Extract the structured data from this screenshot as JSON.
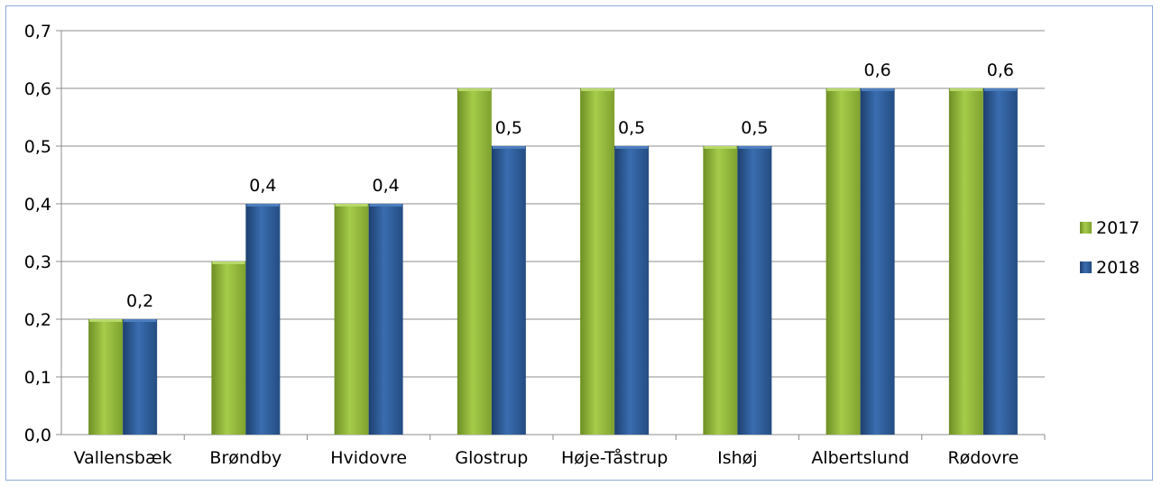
{
  "chart_data": {
    "type": "bar",
    "categories": [
      "Vallensbæk",
      "Brøndby",
      "Hvidovre",
      "Glostrup",
      "Høje-Tåstrup",
      "Ishøj",
      "Albertslund",
      "Rødovre"
    ],
    "series": [
      {
        "name": "2017",
        "values": [
          0.2,
          0.3,
          0.4,
          0.6,
          0.6,
          0.5,
          0.6,
          0.6
        ],
        "color": "#8db33a"
      },
      {
        "name": "2018",
        "values": [
          0.2,
          0.4,
          0.4,
          0.5,
          0.5,
          0.5,
          0.6,
          0.6
        ],
        "color": "#2e5a94"
      }
    ],
    "data_labels": [
      "0,2",
      "0,4",
      "0,4",
      "0,5",
      "0,5",
      "0,5",
      "0,6",
      "0,6"
    ],
    "yticks": [
      "0,0",
      "0,1",
      "0,2",
      "0,3",
      "0,4",
      "0,5",
      "0,6",
      "0,7"
    ],
    "ylim": [
      0,
      0.7
    ],
    "grid": true,
    "legend_position": "right"
  }
}
